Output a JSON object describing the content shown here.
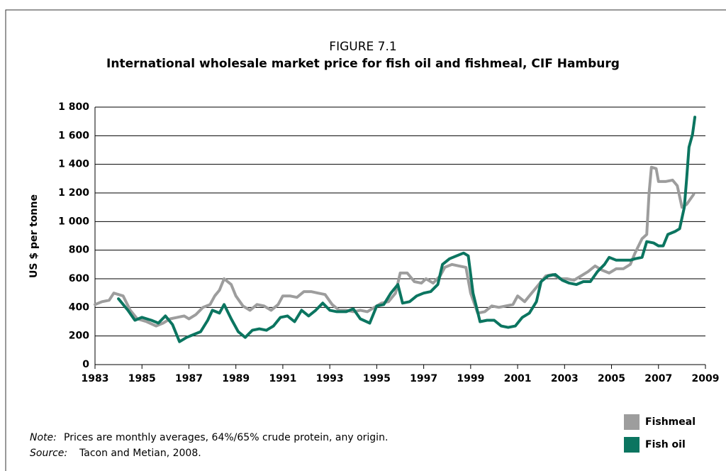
{
  "chart_data": {
    "type": "line",
    "title": "FIGURE 7.1",
    "subtitle": "International wholesale market price for fish oil and fishmeal, CIF Hamburg",
    "y_label": "US $ per tonne",
    "note_label": "Note:",
    "note": "Prices are monthly averages, 64%/65% crude protein, any origin.",
    "source_label": "Source:",
    "source": "Tacon and Metian, 2008.",
    "xlim": [
      1983,
      2009
    ],
    "xticks": [
      1983,
      1985,
      1987,
      1989,
      1991,
      1993,
      1995,
      1997,
      1999,
      2001,
      2003,
      2005,
      2007,
      2009
    ],
    "ylim": [
      0,
      1800
    ],
    "yticks": [
      0,
      200,
      400,
      600,
      800,
      {
        "value": 1000,
        "label": "1 000"
      },
      {
        "value": 1200,
        "label": "1 200"
      },
      {
        "value": 1400,
        "label": "1 400"
      },
      {
        "value": 1600,
        "label": "1 600"
      },
      {
        "value": 1800,
        "label": "1 800"
      }
    ],
    "grid": true,
    "legend": "lower right",
    "series": [
      {
        "name": "Fishmeal",
        "color": "#9d9d9d",
        "x": [
          1983,
          1983.3,
          1983.6,
          1983.8,
          1984.2,
          1984.5,
          1984.8,
          1985.2,
          1985.6,
          1985.9,
          1986.2,
          1986.5,
          1986.8,
          1987.0,
          1987.3,
          1987.6,
          1987.9,
          1988.1,
          1988.3,
          1988.5,
          1988.8,
          1989.0,
          1989.3,
          1989.6,
          1989.9,
          1990.2,
          1990.5,
          1990.8,
          1991.0,
          1991.3,
          1991.6,
          1991.9,
          1992.2,
          1992.5,
          1992.8,
          1993.1,
          1993.4,
          1993.7,
          1994.0,
          1994.3,
          1994.6,
          1994.9,
          1995.2,
          1995.5,
          1995.8,
          1996.0,
          1996.3,
          1996.6,
          1996.9,
          1997.1,
          1997.4,
          1997.7,
          1997.9,
          1998.2,
          1998.5,
          1998.8,
          1999.0,
          1999.3,
          1999.6,
          1999.9,
          2000.2,
          2000.5,
          2000.8,
          2001.0,
          2001.3,
          2001.6,
          2001.9,
          2002.2,
          2002.5,
          2002.8,
          2003.1,
          2003.4,
          2003.7,
          2004.0,
          2004.3,
          2004.6,
          2004.9,
          2005.2,
          2005.5,
          2005.8,
          2006.0,
          2006.3,
          2006.5,
          2006.6,
          2006.7,
          2006.9,
          2007.0,
          2007.3,
          2007.6,
          2007.8,
          2008.0,
          2008.2,
          2008.5
        ],
        "values": [
          420,
          440,
          450,
          500,
          480,
          380,
          320,
          300,
          270,
          290,
          320,
          330,
          340,
          320,
          350,
          400,
          420,
          480,
          520,
          600,
          560,
          480,
          410,
          380,
          420,
          410,
          380,
          420,
          480,
          480,
          470,
          510,
          510,
          500,
          490,
          420,
          380,
          380,
          370,
          380,
          370,
          400,
          430,
          440,
          500,
          640,
          640,
          580,
          570,
          600,
          570,
          620,
          680,
          700,
          690,
          680,
          500,
          360,
          370,
          410,
          400,
          410,
          420,
          480,
          440,
          500,
          560,
          620,
          630,
          600,
          600,
          590,
          620,
          650,
          690,
          660,
          640,
          670,
          670,
          700,
          780,
          880,
          910,
          1200,
          1380,
          1370,
          1280,
          1280,
          1290,
          1250,
          1100,
          1120,
          1190
        ]
      },
      {
        "name": "Fish oil",
        "color": "#0b7560",
        "x": [
          1984.0,
          1984.4,
          1984.7,
          1985.0,
          1985.4,
          1985.7,
          1986.0,
          1986.3,
          1986.6,
          1986.9,
          1987.2,
          1987.5,
          1987.8,
          1988.0,
          1988.3,
          1988.5,
          1988.8,
          1989.1,
          1989.4,
          1989.7,
          1990.0,
          1990.3,
          1990.6,
          1990.9,
          1991.2,
          1991.5,
          1991.8,
          1992.1,
          1992.4,
          1992.7,
          1993.0,
          1993.3,
          1993.7,
          1994.0,
          1994.3,
          1994.7,
          1995.0,
          1995.3,
          1995.6,
          1995.9,
          1996.1,
          1996.4,
          1996.7,
          1997.0,
          1997.3,
          1997.6,
          1997.8,
          1998.1,
          1998.4,
          1998.7,
          1998.9,
          1999.1,
          1999.4,
          1999.7,
          2000.0,
          2000.3,
          2000.6,
          2000.9,
          2001.2,
          2001.5,
          2001.8,
          2002.0,
          2002.3,
          2002.6,
          2002.9,
          2003.2,
          2003.5,
          2003.8,
          2004.1,
          2004.4,
          2004.7,
          2004.9,
          2005.2,
          2005.5,
          2005.8,
          2006.0,
          2006.3,
          2006.5,
          2006.8,
          2007.0,
          2007.2,
          2007.4,
          2007.7,
          2007.9,
          2008.1,
          2008.2,
          2008.3,
          2008.45,
          2008.55
        ],
        "values": [
          460,
          380,
          310,
          330,
          310,
          290,
          340,
          280,
          160,
          190,
          210,
          230,
          310,
          380,
          360,
          420,
          320,
          230,
          190,
          240,
          250,
          240,
          270,
          330,
          340,
          300,
          380,
          340,
          380,
          430,
          380,
          370,
          370,
          390,
          320,
          290,
          410,
          420,
          500,
          560,
          430,
          440,
          480,
          500,
          510,
          560,
          700,
          740,
          760,
          780,
          760,
          500,
          300,
          310,
          310,
          270,
          260,
          270,
          330,
          360,
          440,
          580,
          620,
          630,
          590,
          570,
          560,
          580,
          580,
          650,
          700,
          750,
          730,
          730,
          730,
          740,
          750,
          860,
          850,
          830,
          830,
          910,
          930,
          950,
          1100,
          1300,
          1520,
          1610,
          1730
        ]
      }
    ]
  }
}
